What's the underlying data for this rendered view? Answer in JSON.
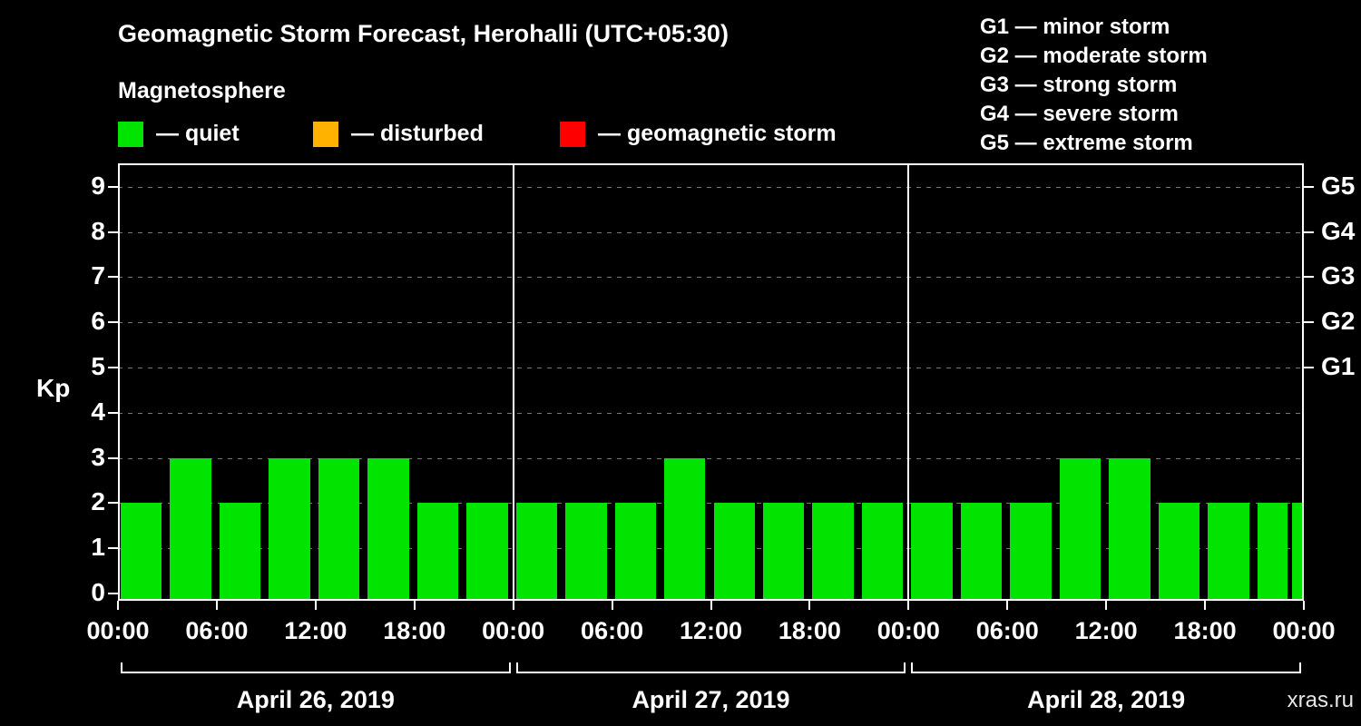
{
  "header": {
    "title": "Geomagnetic Storm Forecast, Herohalli (UTC+05:30)",
    "subtitle": "Magnetosphere",
    "watermark": "xras.ru"
  },
  "kp_legend": [
    {
      "name": "quiet",
      "label": "— quiet",
      "color": "#00e400"
    },
    {
      "name": "disturbed",
      "label": "— disturbed",
      "color": "#ffb300"
    },
    {
      "name": "storm",
      "label": "— geomagnetic storm",
      "color": "#ff0000"
    }
  ],
  "g_scale_legend": [
    "G1 — minor storm",
    "G2 — moderate storm",
    "G3 — strong storm",
    "G4 — severe storm",
    "G5 — extreme storm"
  ],
  "chart_data": {
    "type": "bar",
    "title": "Geomagnetic Storm Forecast, Herohalli (UTC+05:30)",
    "ylabel": "Kp",
    "ylim": [
      0,
      9.5
    ],
    "yticks": [
      0,
      1,
      2,
      3,
      4,
      5,
      6,
      7,
      8,
      9
    ],
    "right_axis": [
      {
        "kp": 5,
        "label": "G1"
      },
      {
        "kp": 6,
        "label": "G2"
      },
      {
        "kp": 7,
        "label": "G3"
      },
      {
        "kp": 8,
        "label": "G4"
      },
      {
        "kp": 9,
        "label": "G5"
      }
    ],
    "x_tick_labels": [
      "00:00",
      "06:00",
      "12:00",
      "18:00",
      "00:00",
      "06:00",
      "12:00",
      "18:00",
      "00:00",
      "06:00",
      "12:00",
      "18:00",
      "00:00"
    ],
    "bar_interval_hours": 3,
    "bar_color": "#00e400",
    "grid": "dashed horizontal lines at each Kp level",
    "days": [
      {
        "date": "April 26, 2019",
        "values": [
          2,
          3,
          2,
          3,
          3,
          3,
          2,
          2
        ]
      },
      {
        "date": "April 27, 2019",
        "values": [
          2,
          2,
          2,
          3,
          2,
          2,
          2,
          2
        ]
      },
      {
        "date": "April 28, 2019",
        "values": [
          2,
          2,
          2,
          3,
          3,
          2,
          2,
          2
        ]
      }
    ],
    "trailing_partial_bar_kp": 2
  }
}
